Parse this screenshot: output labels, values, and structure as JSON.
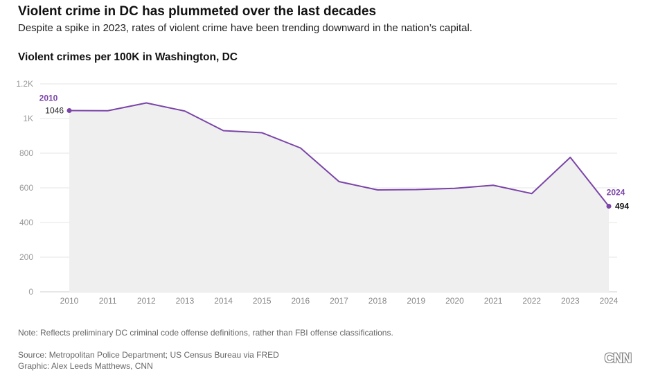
{
  "header": {
    "title": "Violent crime in DC has plummeted over the last decades",
    "subtitle": "Despite a spike in 2023, rates of violent crime have been trending downward in the nation’s capital."
  },
  "chart_data": {
    "type": "area",
    "title": "Violent crimes per 100K in Washington, DC",
    "xlabel": "",
    "ylabel": "",
    "x": [
      2010,
      2011,
      2012,
      2013,
      2014,
      2015,
      2016,
      2017,
      2018,
      2019,
      2020,
      2021,
      2022,
      2023,
      2024
    ],
    "series": [
      {
        "name": "Violent crimes per 100K",
        "values": [
          1046,
          1045,
          1090,
          1043,
          930,
          918,
          830,
          636,
          588,
          590,
          597,
          615,
          567,
          776,
          494
        ]
      }
    ],
    "ylim": [
      0,
      1200
    ],
    "yticks": [
      0,
      200,
      400,
      600,
      800,
      1000,
      1200
    ],
    "ytick_labels": [
      "0",
      "200",
      "400",
      "600",
      "800",
      "1K",
      "1.2K"
    ],
    "grid": true,
    "annotations": [
      {
        "year": "2010",
        "value": "1046"
      },
      {
        "year": "2024",
        "value": "494"
      }
    ],
    "colors": {
      "line": "#7b44a8",
      "fill": "#efefef",
      "grid": "#e4e4e4",
      "axis_text": "#999999",
      "annotation_year": "#7b44a8"
    }
  },
  "footer": {
    "note": "Note: Reflects preliminary DC criminal code offense definitions, rather than FBI offense classifications.",
    "source": "Source: Metropolitan Police Department; US Census Bureau via FRED",
    "credit": "Graphic: Alex Leeds Matthews, CNN",
    "logo": "CNN"
  }
}
